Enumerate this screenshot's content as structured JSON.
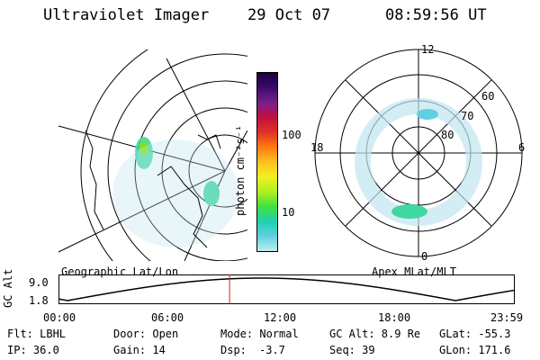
{
  "header": {
    "title": "Ultraviolet Imager",
    "date": "29 Oct 07",
    "time": "08:59:56 UT"
  },
  "left_map": {
    "label": "Geographic Lat/Lon"
  },
  "right_map": {
    "label": "Apex MLat/MLT",
    "mlt_labels": [
      "12",
      "18",
      "6",
      "0"
    ],
    "lat_labels": [
      "60",
      "70",
      "80"
    ]
  },
  "colorbar": {
    "unit": "photon cm⁻²s⁻¹",
    "ticks": [
      "100",
      "10"
    ],
    "colors": [
      "#1a0040",
      "#3b0b6e",
      "#7a1f8a",
      "#c01040",
      "#e0302a",
      "#ff7a10",
      "#ffc020",
      "#f0f020",
      "#b0f020",
      "#40e040",
      "#20d0b0",
      "#60d0e0",
      "#c0ecf0"
    ]
  },
  "timeline": {
    "ylabel": "GC Alt",
    "y_ticks": [
      "9.0",
      "1.8"
    ],
    "x_ticks": [
      "00:00",
      "06:00",
      "12:00",
      "18:00",
      "23:59"
    ],
    "marker_time_hours": 9.0
  },
  "info": {
    "flt": "Flt: LBHL",
    "ip": "IP: 36.0",
    "door": "Door: Open",
    "gain": "Gain: 14",
    "mode": "Mode: Normal",
    "dsp": "Dsp:",
    "dsp_value": "-3.7",
    "gc_alt": "GC Alt: 8.9 Re",
    "seq": "Seq: 39",
    "glat": "GLat: -55.3",
    "glon": "GLon: 171.6"
  }
}
